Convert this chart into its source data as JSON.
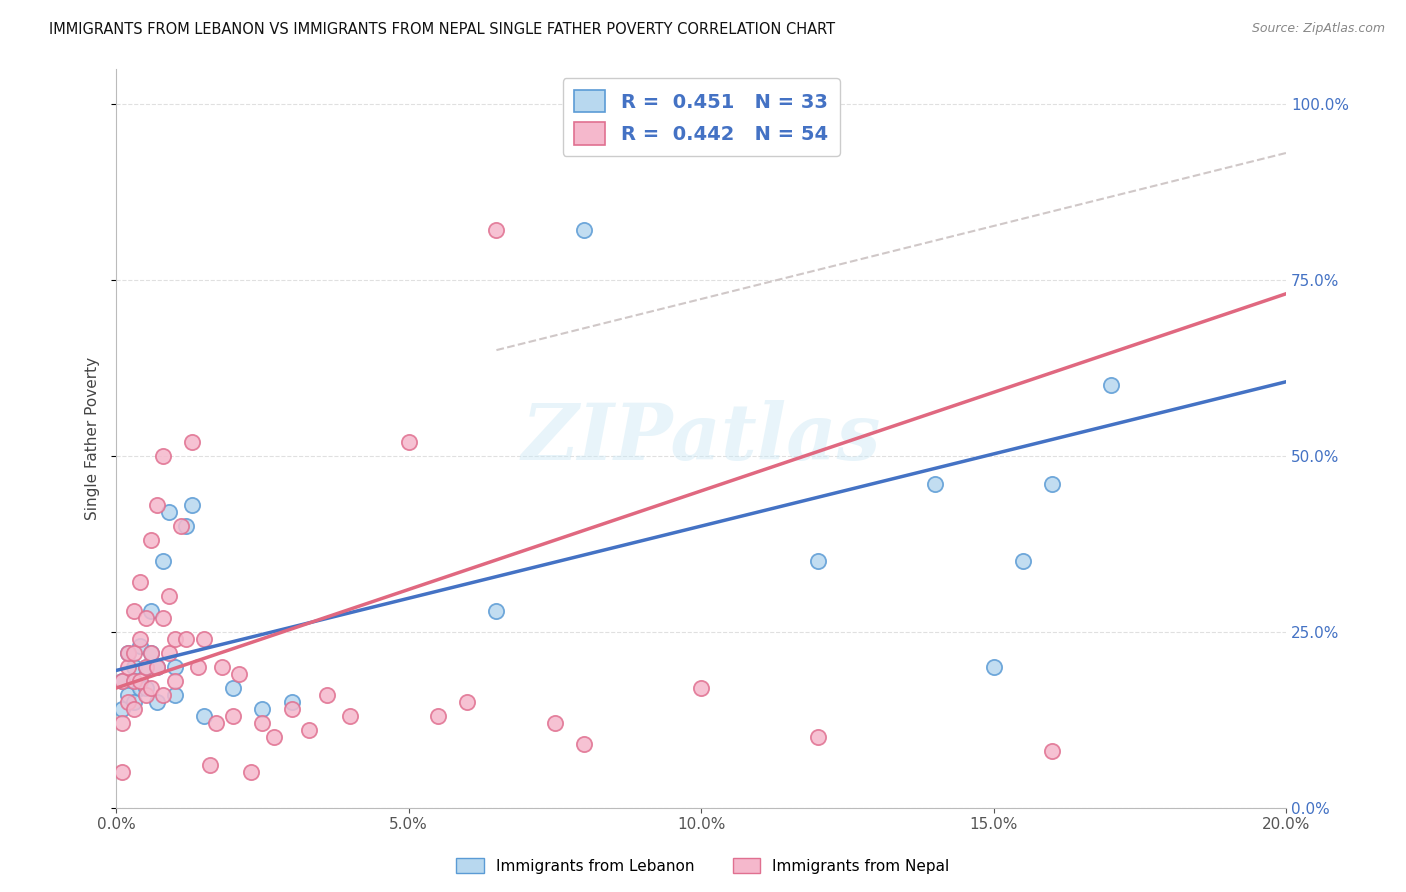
{
  "title": "IMMIGRANTS FROM LEBANON VS IMMIGRANTS FROM NEPAL SINGLE FATHER POVERTY CORRELATION CHART",
  "source": "Source: ZipAtlas.com",
  "ylabel": "Single Father Poverty",
  "legend_label_1": "Immigrants from Lebanon",
  "legend_label_2": "Immigrants from Nepal",
  "R1": "0.451",
  "N1": "33",
  "R2": "0.442",
  "N2": "54",
  "color1": "#b8d8ef",
  "color2": "#f5b8cc",
  "edge1": "#5b9bd5",
  "edge2": "#e07090",
  "trendline1_color": "#4472c4",
  "trendline2_color": "#e06880",
  "dashed_color": "#d0c8c8",
  "xlim": [
    0.0,
    0.2
  ],
  "ylim": [
    0.0,
    1.05
  ],
  "xticks": [
    0.0,
    0.05,
    0.1,
    0.15,
    0.2
  ],
  "yticks": [
    0.0,
    0.25,
    0.5,
    0.75,
    1.0
  ],
  "lebanon_x": [
    0.001,
    0.001,
    0.002,
    0.002,
    0.003,
    0.003,
    0.003,
    0.004,
    0.004,
    0.005,
    0.005,
    0.006,
    0.006,
    0.007,
    0.007,
    0.008,
    0.009,
    0.01,
    0.01,
    0.012,
    0.013,
    0.015,
    0.02,
    0.025,
    0.03,
    0.065,
    0.08,
    0.12,
    0.14,
    0.15,
    0.155,
    0.16,
    0.17
  ],
  "lebanon_y": [
    0.18,
    0.14,
    0.22,
    0.16,
    0.2,
    0.18,
    0.15,
    0.23,
    0.17,
    0.2,
    0.17,
    0.22,
    0.28,
    0.2,
    0.15,
    0.35,
    0.42,
    0.2,
    0.16,
    0.4,
    0.43,
    0.13,
    0.17,
    0.14,
    0.15,
    0.28,
    0.82,
    0.35,
    0.46,
    0.2,
    0.35,
    0.46,
    0.6
  ],
  "nepal_x": [
    0.001,
    0.001,
    0.001,
    0.002,
    0.002,
    0.002,
    0.003,
    0.003,
    0.003,
    0.003,
    0.004,
    0.004,
    0.004,
    0.005,
    0.005,
    0.005,
    0.006,
    0.006,
    0.006,
    0.007,
    0.007,
    0.008,
    0.008,
    0.008,
    0.009,
    0.009,
    0.01,
    0.01,
    0.011,
    0.012,
    0.013,
    0.014,
    0.015,
    0.016,
    0.017,
    0.018,
    0.02,
    0.021,
    0.023,
    0.025,
    0.027,
    0.03,
    0.033,
    0.036,
    0.04,
    0.05,
    0.055,
    0.06,
    0.065,
    0.075,
    0.08,
    0.1,
    0.12,
    0.16
  ],
  "nepal_y": [
    0.05,
    0.12,
    0.18,
    0.2,
    0.15,
    0.22,
    0.18,
    0.14,
    0.28,
    0.22,
    0.32,
    0.18,
    0.24,
    0.2,
    0.27,
    0.16,
    0.22,
    0.38,
    0.17,
    0.43,
    0.2,
    0.5,
    0.27,
    0.16,
    0.3,
    0.22,
    0.24,
    0.18,
    0.4,
    0.24,
    0.52,
    0.2,
    0.24,
    0.06,
    0.12,
    0.2,
    0.13,
    0.19,
    0.05,
    0.12,
    0.1,
    0.14,
    0.11,
    0.16,
    0.13,
    0.52,
    0.13,
    0.15,
    0.82,
    0.12,
    0.09,
    0.17,
    0.1,
    0.08
  ],
  "trendline1_intercept": 0.195,
  "trendline1_slope": 2.05,
  "trendline2_intercept": 0.17,
  "trendline2_slope": 2.8,
  "bg_color": "#ffffff",
  "grid_color": "#e0e0e0",
  "watermark": "ZIPatlas",
  "tick_color": "#4472c4"
}
